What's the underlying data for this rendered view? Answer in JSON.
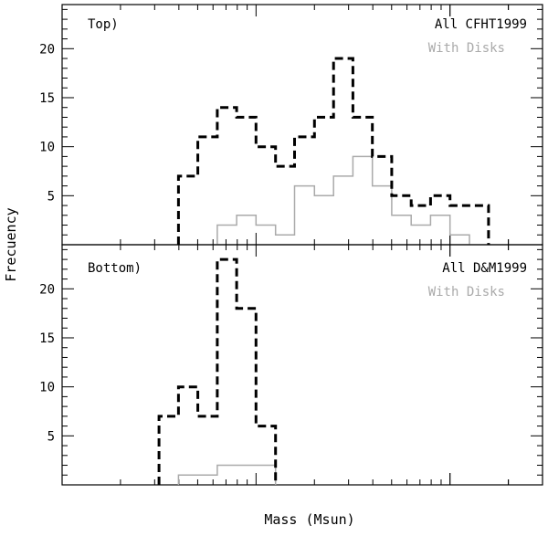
{
  "figure": {
    "ylabel": "Frecuency",
    "xlabel": "Mass (Msun)"
  },
  "colors": {
    "all": "#000000",
    "with_disks": "#aaaaaa"
  },
  "chart_data": [
    {
      "type": "step-histogram",
      "panel_label": "Top)",
      "legend": [
        "All CFHT1999",
        "With Disks"
      ],
      "legend_position": "top-right",
      "ylabel": "Frecuency",
      "ylim": [
        0,
        24.5
      ],
      "yticks": [
        5,
        10,
        15,
        20
      ],
      "xscale": "log",
      "xlim": [
        0.01,
        3
      ],
      "bin_width_dex": 0.1,
      "series": [
        {
          "name": "All CFHT1999",
          "style": "dashed",
          "bins": [
            {
              "lo": 0.0398,
              "hi": 0.0501,
              "count": 7
            },
            {
              "lo": 0.0501,
              "hi": 0.0631,
              "count": 11
            },
            {
              "lo": 0.0631,
              "hi": 0.0794,
              "count": 14
            },
            {
              "lo": 0.0794,
              "hi": 0.1,
              "count": 13
            },
            {
              "lo": 0.1,
              "hi": 0.126,
              "count": 10
            },
            {
              "lo": 0.126,
              "hi": 0.158,
              "count": 8
            },
            {
              "lo": 0.158,
              "hi": 0.2,
              "count": 11
            },
            {
              "lo": 0.2,
              "hi": 0.251,
              "count": 13
            },
            {
              "lo": 0.251,
              "hi": 0.316,
              "count": 19
            },
            {
              "lo": 0.316,
              "hi": 0.398,
              "count": 13
            },
            {
              "lo": 0.398,
              "hi": 0.501,
              "count": 9
            },
            {
              "lo": 0.501,
              "hi": 0.631,
              "count": 5
            },
            {
              "lo": 0.631,
              "hi": 0.794,
              "count": 4
            },
            {
              "lo": 0.794,
              "hi": 1.0,
              "count": 5
            },
            {
              "lo": 1.0,
              "hi": 1.26,
              "count": 4
            },
            {
              "lo": 1.26,
              "hi": 1.58,
              "count": 4
            }
          ]
        },
        {
          "name": "With Disks",
          "style": "solid",
          "bins": [
            {
              "lo": 0.0631,
              "hi": 0.0794,
              "count": 2
            },
            {
              "lo": 0.0794,
              "hi": 0.1,
              "count": 3
            },
            {
              "lo": 0.1,
              "hi": 0.126,
              "count": 2
            },
            {
              "lo": 0.126,
              "hi": 0.158,
              "count": 1
            },
            {
              "lo": 0.158,
              "hi": 0.2,
              "count": 6
            },
            {
              "lo": 0.2,
              "hi": 0.251,
              "count": 5
            },
            {
              "lo": 0.251,
              "hi": 0.316,
              "count": 7
            },
            {
              "lo": 0.316,
              "hi": 0.398,
              "count": 9
            },
            {
              "lo": 0.398,
              "hi": 0.501,
              "count": 6
            },
            {
              "lo": 0.501,
              "hi": 0.631,
              "count": 3
            },
            {
              "lo": 0.631,
              "hi": 0.794,
              "count": 2
            },
            {
              "lo": 0.794,
              "hi": 1.0,
              "count": 3
            },
            {
              "lo": 1.0,
              "hi": 1.26,
              "count": 1
            }
          ]
        }
      ]
    },
    {
      "type": "step-histogram",
      "panel_label": "Bottom)",
      "legend": [
        "All D&M1999",
        "With Disks"
      ],
      "legend_position": "top-right",
      "ylabel": "Frecuency",
      "ylim": [
        0,
        24.5
      ],
      "yticks": [
        5,
        10,
        15,
        20
      ],
      "xscale": "log",
      "xlim": [
        0.01,
        3
      ],
      "bin_width_dex": 0.1,
      "series": [
        {
          "name": "All D&M1999",
          "style": "dashed",
          "bins": [
            {
              "lo": 0.0316,
              "hi": 0.0398,
              "count": 7
            },
            {
              "lo": 0.0398,
              "hi": 0.0501,
              "count": 10
            },
            {
              "lo": 0.0501,
              "hi": 0.0631,
              "count": 7
            },
            {
              "lo": 0.0631,
              "hi": 0.0794,
              "count": 23
            },
            {
              "lo": 0.0794,
              "hi": 0.1,
              "count": 18
            },
            {
              "lo": 0.1,
              "hi": 0.126,
              "count": 6
            }
          ]
        },
        {
          "name": "With Disks",
          "style": "solid",
          "bins": [
            {
              "lo": 0.0398,
              "hi": 0.0501,
              "count": 1
            },
            {
              "lo": 0.0501,
              "hi": 0.0631,
              "count": 1
            },
            {
              "lo": 0.0631,
              "hi": 0.0794,
              "count": 2
            },
            {
              "lo": 0.0794,
              "hi": 0.1,
              "count": 2
            },
            {
              "lo": 0.1,
              "hi": 0.126,
              "count": 2
            }
          ]
        }
      ]
    }
  ]
}
